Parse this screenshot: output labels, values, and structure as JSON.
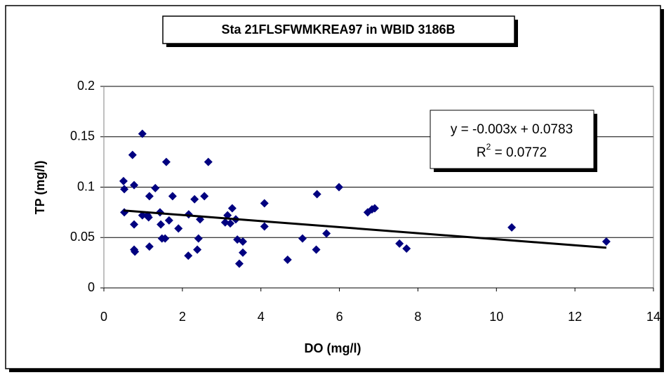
{
  "chart_data": {
    "type": "scatter",
    "title": "Sta 21FLSFWMKREA97 in WBID 3186B",
    "x_label": "DO (mg/l)",
    "y_label": "TP (mg/l)",
    "xlim": [
      0,
      14
    ],
    "xticks": [
      0,
      2,
      4,
      6,
      8,
      10,
      12,
      14
    ],
    "ylim": [
      0,
      0.2
    ],
    "yticks": [
      0,
      0.05,
      0.1,
      0.15,
      0.2
    ],
    "grid": true,
    "color": "#000080",
    "x": [
      0.5,
      0.52,
      0.52,
      0.73,
      0.77,
      0.77,
      0.77,
      0.79,
      0.98,
      0.98,
      1.11,
      1.14,
      1.16,
      1.16,
      1.31,
      1.43,
      1.45,
      1.48,
      1.56,
      1.59,
      1.66,
      1.75,
      1.9,
      2.15,
      2.16,
      2.31,
      2.38,
      2.41,
      2.45,
      2.56,
      2.66,
      3.09,
      3.15,
      3.22,
      3.27,
      3.36,
      3.4,
      3.45,
      3.54,
      3.54,
      4.09,
      4.09,
      4.68,
      5.06,
      5.41,
      5.43,
      5.67,
      5.99,
      6.72,
      6.83,
      6.9,
      7.53,
      7.71,
      10.39,
      12.8
    ],
    "values": [
      0.106,
      0.098,
      0.075,
      0.132,
      0.102,
      0.063,
      0.038,
      0.036,
      0.153,
      0.072,
      0.072,
      0.07,
      0.091,
      0.041,
      0.099,
      0.075,
      0.063,
      0.049,
      0.049,
      0.125,
      0.067,
      0.091,
      0.059,
      0.032,
      0.073,
      0.088,
      0.038,
      0.049,
      0.068,
      0.091,
      0.125,
      0.065,
      0.072,
      0.064,
      0.079,
      0.068,
      0.048,
      0.024,
      0.046,
      0.035,
      0.084,
      0.061,
      0.028,
      0.049,
      0.038,
      0.093,
      0.054,
      0.1,
      0.075,
      0.078,
      0.079,
      0.044,
      0.039,
      0.06,
      0.046
    ],
    "trendline": {
      "slope": -0.003,
      "intercept": 0.0783,
      "x_start": 0.5,
      "x_end": 12.8,
      "equation": "y = -0.003x + 0.0783",
      "r2_base": "R",
      "r2_exponent": "2",
      "r2_rest": " = 0.0772"
    }
  }
}
